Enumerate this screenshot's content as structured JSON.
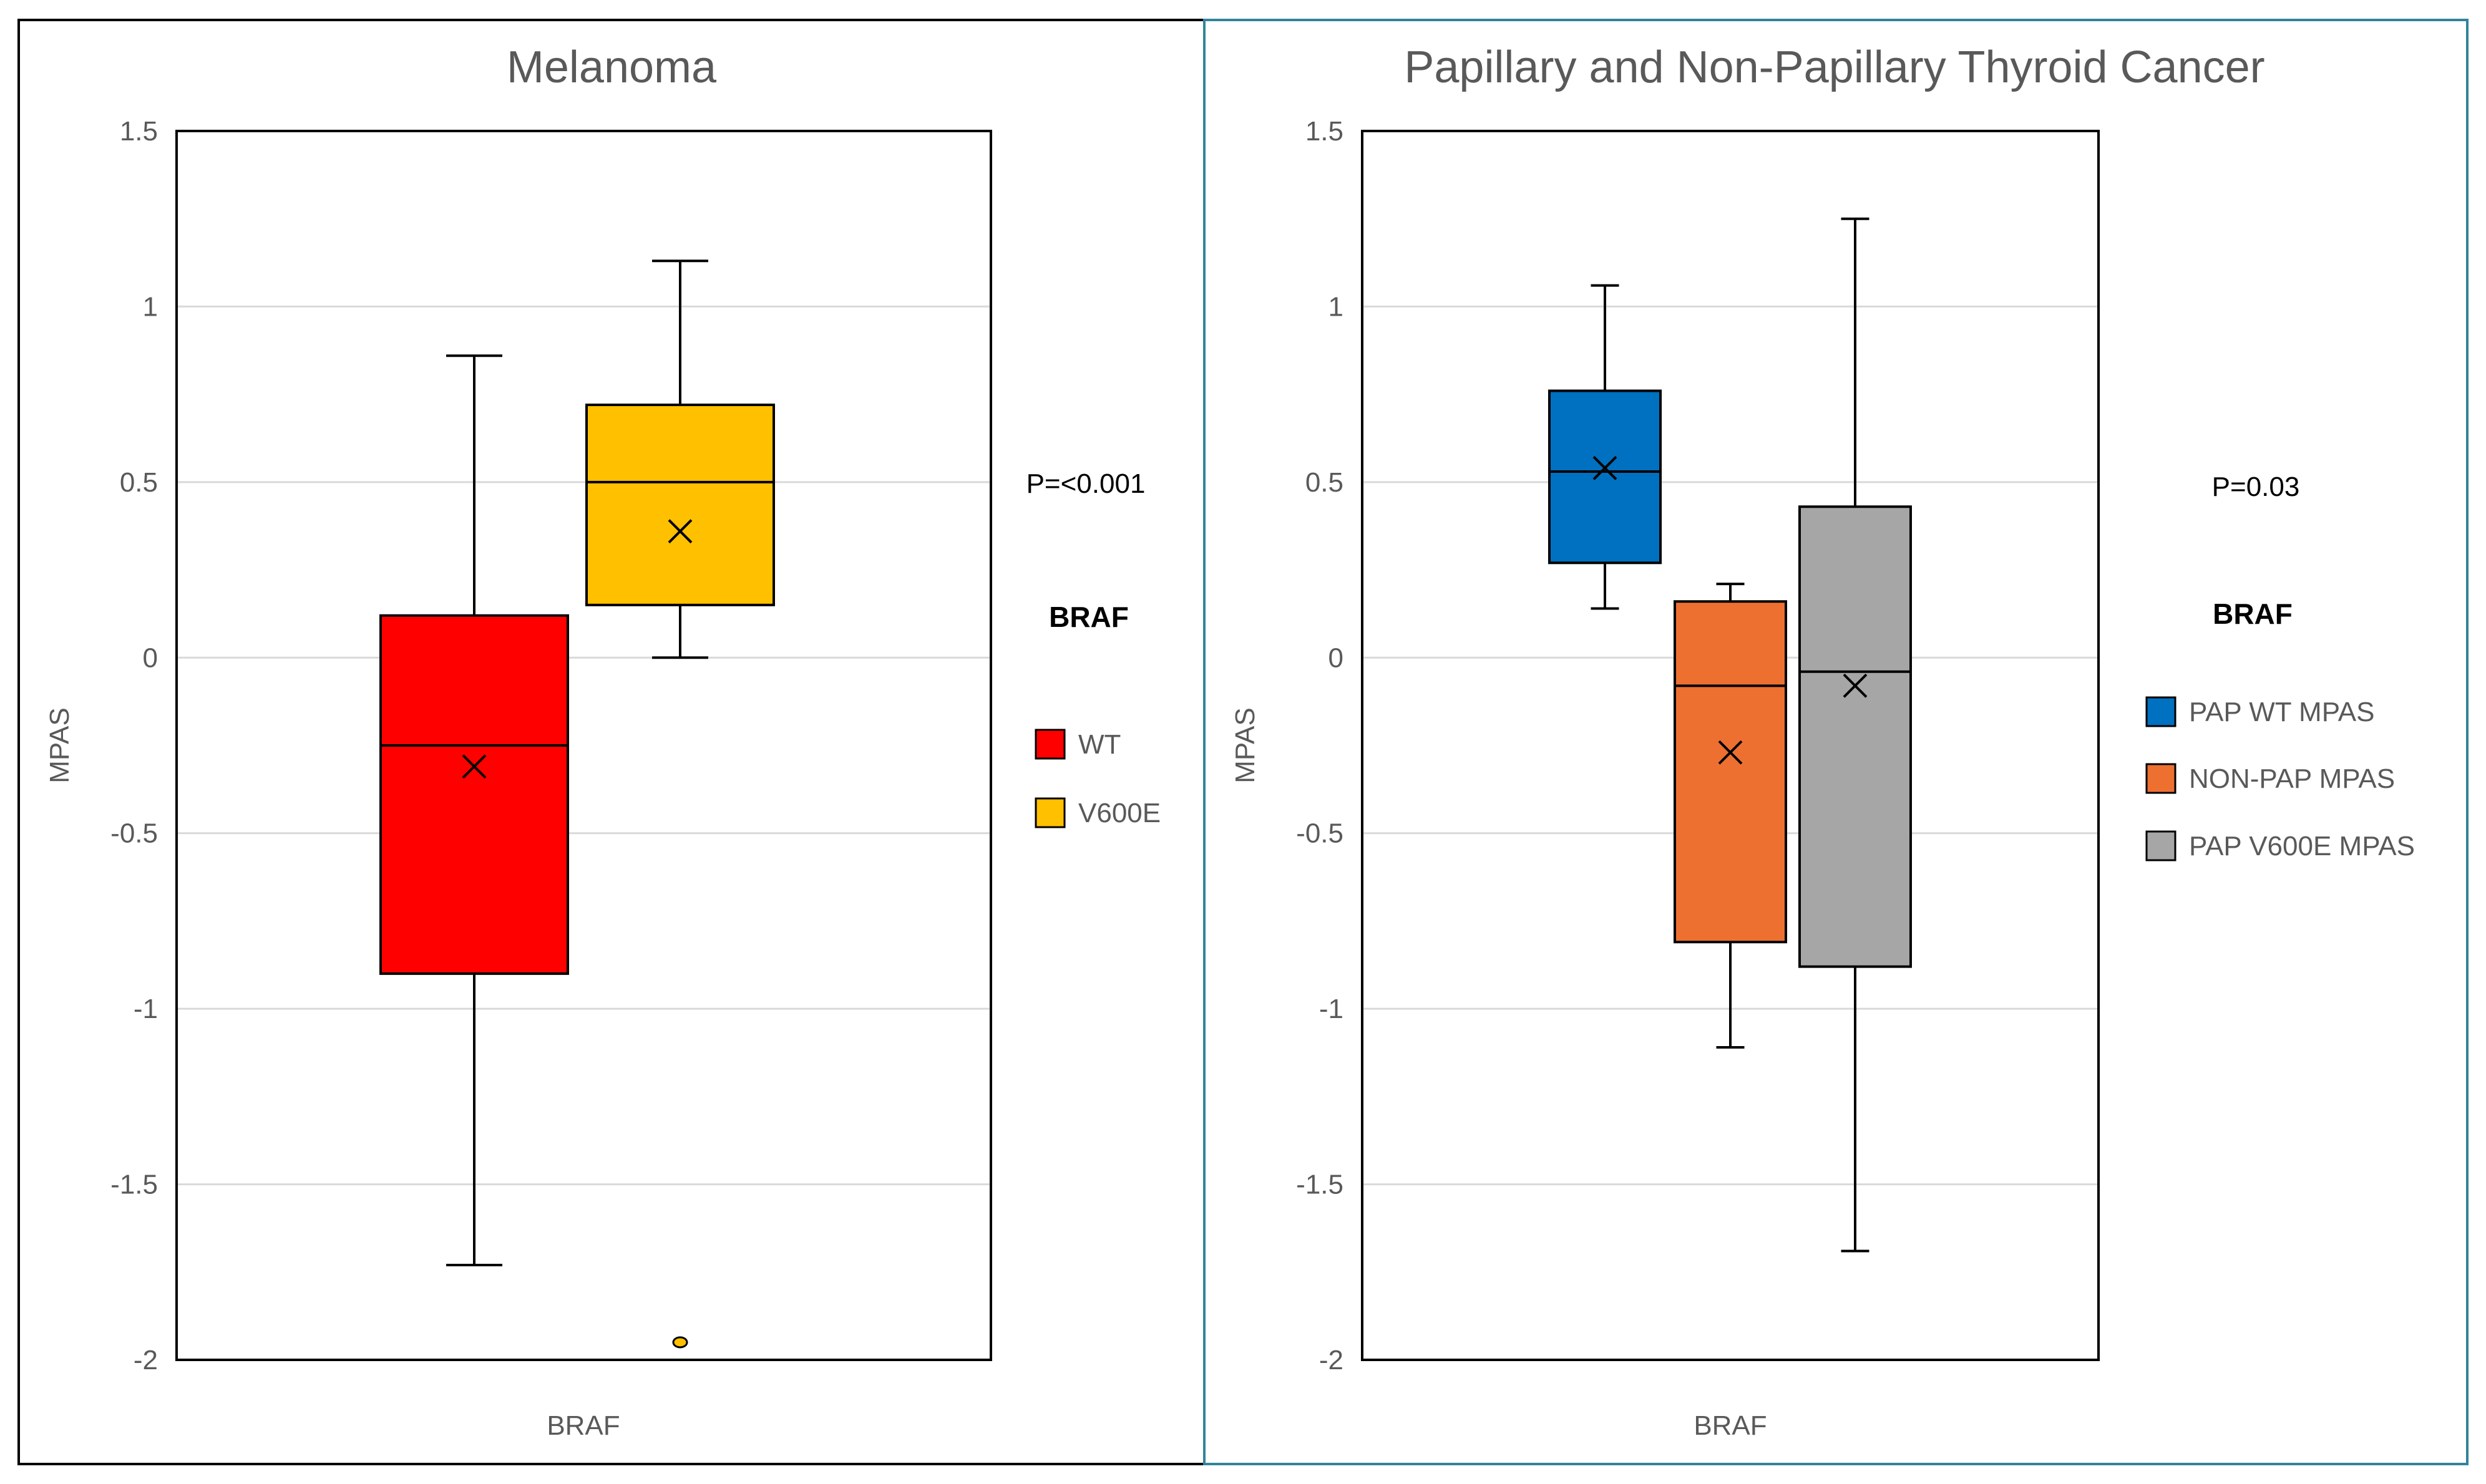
{
  "chart_data": [
    {
      "type": "boxplot",
      "title": "Melanoma",
      "xlabel": "BRAF",
      "ylabel": "MPAS",
      "ylim": [
        -2,
        1.5
      ],
      "yticks": [
        "1.5",
        "1",
        "0.5",
        "0",
        "-0.5",
        "-1",
        "-1.5",
        "-2"
      ],
      "grid": true,
      "p_value": "P=<0.001",
      "legend_title": "BRAF",
      "legend_position": "right",
      "series": [
        {
          "name": "WT",
          "color": "#ff0000",
          "whisker_low": -1.73,
          "q1": -0.9,
          "median": -0.25,
          "mean": -0.31,
          "q3": 0.12,
          "whisker_high": 0.86,
          "outliers": []
        },
        {
          "name": "V600E",
          "color": "#ffc000",
          "whisker_low": 0.0,
          "q1": 0.15,
          "median": 0.5,
          "mean": 0.36,
          "q3": 0.72,
          "whisker_high": 1.13,
          "outliers": [
            -1.95
          ]
        }
      ]
    },
    {
      "type": "boxplot",
      "title": "Papillary and Non-Papillary Thyroid Cancer",
      "xlabel": "BRAF",
      "ylabel": "MPAS",
      "ylim": [
        -2,
        1.5
      ],
      "yticks": [
        "1.5",
        "1",
        "0.5",
        "0",
        "-0.5",
        "-1",
        "-1.5",
        "-2"
      ],
      "grid": true,
      "p_value": "P=0.03",
      "legend_title": "BRAF",
      "legend_position": "right",
      "series": [
        {
          "name": "PAP WT MPAS",
          "color": "#0070c0",
          "whisker_low": 0.14,
          "q1": 0.27,
          "median": 0.53,
          "mean": 0.54,
          "q3": 0.76,
          "whisker_high": 1.06,
          "outliers": []
        },
        {
          "name": "NON-PAP MPAS",
          "color": "#ed7031",
          "whisker_low": -1.11,
          "q1": -0.81,
          "median": -0.08,
          "mean": -0.27,
          "q3": 0.16,
          "whisker_high": 0.21,
          "outliers": []
        },
        {
          "name": "PAP V600E MPAS",
          "color": "#a6a6a6",
          "whisker_low": -1.69,
          "q1": -0.88,
          "median": -0.04,
          "mean": -0.08,
          "q3": 0.43,
          "whisker_high": 1.25,
          "outliers": []
        }
      ]
    }
  ]
}
